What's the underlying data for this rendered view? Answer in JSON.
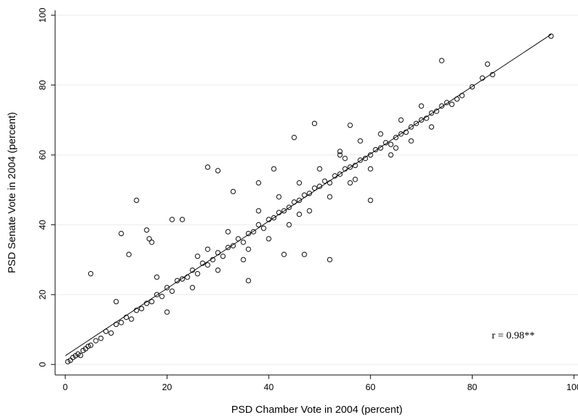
{
  "chart_data": {
    "type": "scatter",
    "x_label": "PSD Chamber Vote in 2004 (percent)",
    "y_label": "PSD Senate Vote in 2004 (percent)",
    "annotation": "r = 0.98**",
    "xlim": [
      -2,
      100.8
    ],
    "ylim": [
      -3,
      101.4
    ],
    "xticks": [
      0,
      20,
      40,
      60,
      80,
      100
    ],
    "yticks": [
      0,
      20,
      40,
      60,
      80,
      100
    ],
    "grid": true,
    "color": "#000000",
    "x": [
      0.5,
      1,
      1.5,
      2,
      2.5,
      3,
      3.5,
      4,
      4.5,
      5,
      6,
      7,
      8,
      9,
      10,
      11,
      12,
      13,
      14,
      15,
      16,
      17,
      18,
      19,
      20,
      21,
      22,
      23,
      24,
      25,
      26,
      27,
      28,
      29,
      30,
      31,
      32,
      33,
      34,
      35,
      36,
      37,
      38,
      39,
      40,
      41,
      42,
      43,
      44,
      45,
      46,
      47,
      48,
      49,
      50,
      51,
      52,
      53,
      54,
      55,
      56,
      57,
      58,
      59,
      60,
      61,
      62,
      63,
      64,
      65,
      66,
      67,
      68,
      69,
      70,
      71,
      72,
      73,
      74,
      75,
      76,
      77,
      78,
      80,
      82,
      84,
      18,
      20,
      25,
      28,
      30,
      32,
      35,
      38,
      40,
      42,
      44,
      46,
      48,
      50,
      52,
      54,
      56,
      58,
      60,
      62,
      64,
      66,
      68,
      70,
      72,
      26,
      36,
      46,
      55,
      65,
      5,
      14,
      11,
      16,
      16.5,
      17,
      21,
      23,
      28,
      30,
      49,
      74,
      83,
      95.5,
      52,
      47,
      36,
      60,
      54,
      43,
      57,
      12.5,
      10,
      33,
      38,
      41,
      56,
      45
    ],
    "values": [
      0.8,
      1.2,
      2,
      2.5,
      3,
      2.6,
      4,
      4.5,
      5.2,
      5.5,
      6.8,
      7.5,
      9.5,
      9,
      11.5,
      12,
      13.5,
      13,
      15.5,
      16,
      17.5,
      18,
      20,
      19.5,
      22,
      21,
      24,
      24.5,
      25,
      27,
      26,
      29,
      28.5,
      30,
      32,
      31,
      33.5,
      34,
      36,
      35,
      37.5,
      38,
      40,
      39,
      41.5,
      42,
      43.5,
      44,
      45,
      46.5,
      47,
      48.5,
      49,
      50.5,
      51,
      52.5,
      52,
      54,
      54.5,
      56,
      56.5,
      57,
      58.5,
      59,
      60,
      61.5,
      62,
      63.5,
      63,
      65,
      66,
      66.5,
      68,
      69,
      70,
      70.5,
      72,
      72.5,
      74,
      75,
      74.5,
      76,
      77,
      79.5,
      82,
      83,
      25,
      15,
      22,
      33,
      27,
      38,
      30,
      44,
      36,
      48,
      40,
      52,
      44,
      56,
      48,
      60,
      52,
      64,
      56,
      66,
      60,
      70,
      64,
      74,
      68,
      31,
      33,
      43,
      59,
      62,
      26,
      47,
      37.5,
      38.5,
      36,
      35,
      41.5,
      41.5,
      56.5,
      55.5,
      69,
      87,
      86,
      94,
      30,
      31.5,
      24,
      47,
      61,
      31.5,
      53,
      31.5,
      18,
      49.5,
      52,
      56,
      68.5,
      65
    ],
    "fit_line": {
      "x": [
        0,
        95.5
      ],
      "values": [
        2.5,
        94.5
      ]
    }
  }
}
